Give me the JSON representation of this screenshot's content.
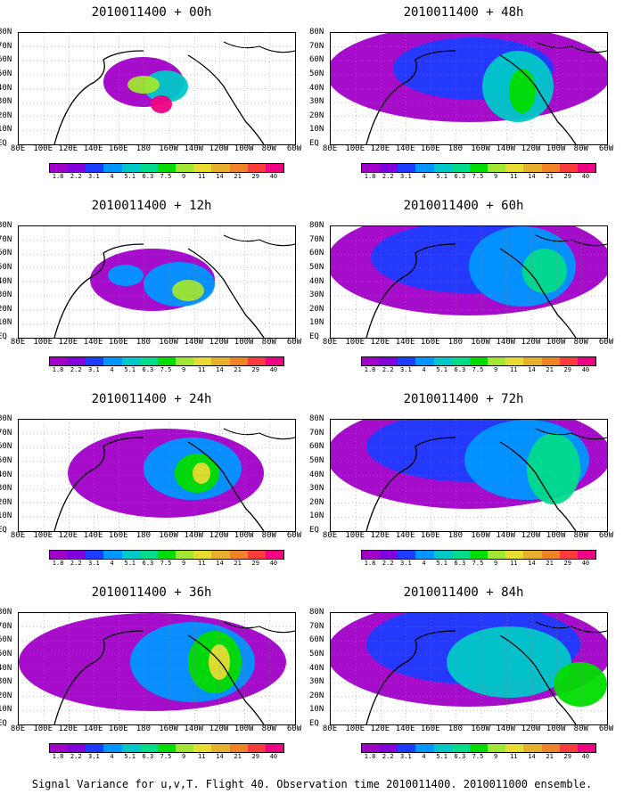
{
  "caption": "Signal Variance for u,v,T. Flight 40. Observation time 2010011400. 2010011000 ensemble.",
  "lat_labels": [
    "80N",
    "70N",
    "60N",
    "50N",
    "40N",
    "30N",
    "20N",
    "10N",
    "EQ"
  ],
  "lon_labels": [
    "80E",
    "100E",
    "120E",
    "140E",
    "160E",
    "180",
    "160W",
    "140W",
    "120W",
    "100W",
    "80W",
    "60W"
  ],
  "colorbar": {
    "labels": [
      "1.8",
      "2.2",
      "3.1",
      "4",
      "5.1",
      "6.3",
      "7.5",
      "9",
      "11",
      "14",
      "21",
      "29",
      "40"
    ],
    "colors": [
      "#a000c8",
      "#8200dc",
      "#1e3cff",
      "#0096ff",
      "#00c8c8",
      "#00dc8c",
      "#00dc00",
      "#a0e632",
      "#e6dc32",
      "#e6af2d",
      "#f08228",
      "#fa3c3c",
      "#f00082"
    ]
  },
  "chart_data": [
    {
      "type": "heatmap",
      "title": "2010011400 + 00h",
      "forecast_hour": 0,
      "max_level": "40",
      "description_levels": [
        "1.8",
        "2.2",
        "3.1",
        "4",
        "5.1",
        "6.3",
        "7.5",
        "9",
        "11",
        "14",
        "21",
        "29",
        "40"
      ]
    },
    {
      "type": "heatmap",
      "title": "2010011400 + 12h",
      "forecast_hour": 12,
      "max_level": "11"
    },
    {
      "type": "heatmap",
      "title": "2010011400 + 24h",
      "forecast_hour": 24,
      "max_level": "11"
    },
    {
      "type": "heatmap",
      "title": "2010011400 + 36h",
      "forecast_hour": 36,
      "max_level": "11"
    },
    {
      "type": "heatmap",
      "title": "2010011400 + 48h",
      "forecast_hour": 48,
      "max_level": "9"
    },
    {
      "type": "heatmap",
      "title": "2010011400 + 60h",
      "forecast_hour": 60,
      "max_level": "7.5"
    },
    {
      "type": "heatmap",
      "title": "2010011400 + 72h",
      "forecast_hour": 72,
      "max_level": "7.5"
    },
    {
      "type": "heatmap",
      "title": "2010011400 + 84h",
      "forecast_hour": 84,
      "max_level": "11"
    }
  ]
}
